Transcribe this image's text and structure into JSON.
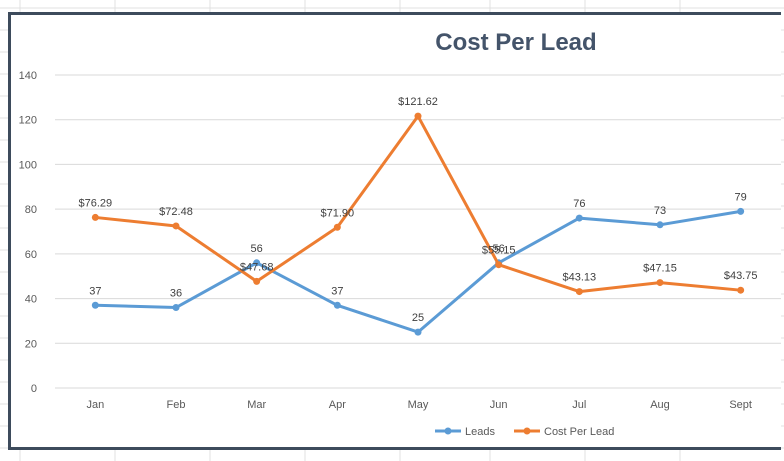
{
  "chart_data": {
    "type": "line",
    "title": "Cost Per Lead",
    "xlabel": "",
    "ylabel": "",
    "categories": [
      "Jan",
      "Feb",
      "Mar",
      "Apr",
      "May",
      "Jun",
      "Jul",
      "Aug",
      "Sept"
    ],
    "ylim": [
      0,
      140
    ],
    "yticks": [
      "0",
      "20",
      "40",
      "60",
      "80",
      "100",
      "120",
      "140"
    ],
    "grid": true,
    "legend_position": "bottom",
    "series": [
      {
        "name": "Leads",
        "color": "#5b9bd5",
        "values": [
          37,
          36,
          56,
          37,
          25,
          56,
          76,
          73,
          79
        ],
        "labels": [
          "37",
          "36",
          "56",
          "37",
          "25",
          "56",
          "76",
          "73",
          "79"
        ]
      },
      {
        "name": "Cost Per Lead",
        "color": "#ed7d31",
        "values": [
          76.29,
          72.48,
          47.68,
          71.9,
          121.62,
          55.15,
          43.13,
          47.15,
          43.75
        ],
        "labels": [
          "$76.29",
          "$72.48",
          "$47.68",
          "$71.90",
          "$121.62",
          "$55.15",
          "$43.13",
          "$47.15",
          "$43.75"
        ]
      }
    ]
  }
}
